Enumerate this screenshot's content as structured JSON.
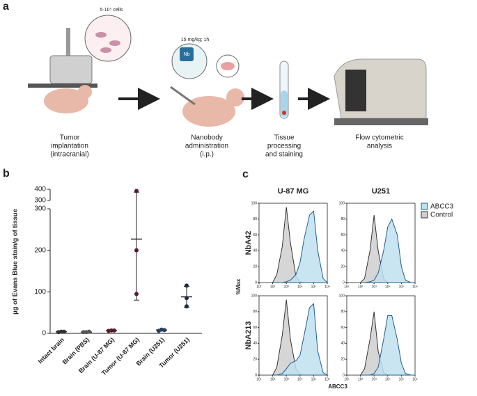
{
  "diagram": {
    "letter": "a",
    "cells": "5·10⁵ cells",
    "dose": "15 mg/kg; 1h",
    "nb": "Nb",
    "steps": [
      [
        "Tumor",
        "implantation",
        "(intracranial)"
      ],
      [
        "Nanobody",
        "administration",
        "(i.p.)"
      ],
      [
        "Tissue",
        "processing",
        "and staining"
      ],
      [
        "Flow cytometric",
        "analysis"
      ]
    ]
  },
  "chart_data": [
    {
      "type": "dot",
      "letter": "b",
      "ylabel": "µg of Evans Blue stain/g of tissue",
      "categories": [
        "Intact brain",
        "Brain (PBS)",
        "Brain (U-87 MG)",
        "Tumor (U-87 MG)",
        "Brain (U251)",
        "Tumor (U251)"
      ],
      "colors": [
        "#333333",
        "#555555",
        "#5a1a2a",
        "#5a1a2a",
        "#2a3f5f",
        "#1c2a44"
      ],
      "values": [
        [
          3,
          4,
          4
        ],
        [
          3,
          3,
          4
        ],
        [
          6,
          7,
          7
        ],
        [
          385,
          200,
          95
        ],
        [
          6,
          9,
          8
        ],
        [
          115,
          85,
          65
        ]
      ],
      "means": [
        4,
        3,
        7,
        227,
        8,
        88
      ],
      "errors": [
        1,
        1,
        1,
        147,
        2,
        25
      ],
      "ylim": [
        0,
        300
      ],
      "yticks": [
        0,
        100,
        200,
        300
      ],
      "ylim_upper": [
        300,
        400
      ],
      "yticks_upper": [
        300,
        400
      ]
    },
    {
      "type": "flow-grid",
      "letter": "c",
      "columns": [
        "U-87 MG",
        "U251"
      ],
      "rows": [
        "NbA42",
        "NbA213"
      ],
      "xlabel": "ABCC3",
      "ylabel": "%Max",
      "log_x": true,
      "xlim": [
        10,
        1000000
      ],
      "xticks": [
        {
          "value": 10,
          "label": "10¹"
        },
        {
          "value": 100,
          "label": "10²"
        },
        {
          "value": 1000,
          "label": "10³"
        },
        {
          "value": 10000,
          "label": "10⁴"
        },
        {
          "value": 100000,
          "label": "10⁵"
        },
        {
          "value": 1000000,
          "label": "10⁶"
        }
      ],
      "ylim": [
        0,
        100
      ],
      "yticks": [
        0,
        20,
        40,
        60,
        80,
        100
      ],
      "x": [
        100,
        200,
        500,
        1000,
        2000,
        5000,
        10000,
        20000,
        50000,
        100000,
        200000,
        500000,
        1000000
      ],
      "series": [
        {
          "name": "ABCC3",
          "color": "#bfe0f0",
          "line": "#1f5f8b",
          "values": [
            [
              0,
              0,
              0,
              1,
              3,
              10,
              25,
              55,
              85,
              90,
              40,
              5,
              0
            ],
            [
              0,
              0,
              1,
              3,
              12,
              40,
              70,
              80,
              60,
              20,
              3,
              0,
              0
            ],
            [
              0,
              0,
              2,
              8,
              15,
              18,
              25,
              50,
              85,
              90,
              30,
              3,
              0
            ],
            [
              0,
              0,
              0,
              2,
              10,
              45,
              75,
              75,
              45,
              15,
              2,
              0,
              0
            ]
          ]
        },
        {
          "name": "Control",
          "color": "#cfcfcf",
          "line": "#333333",
          "values": [
            [
              0,
              10,
              45,
              95,
              50,
              8,
              1,
              0,
              0,
              0,
              0,
              0,
              0
            ],
            [
              0,
              5,
              40,
              85,
              40,
              5,
              0,
              0,
              0,
              0,
              0,
              0,
              0
            ],
            [
              0,
              10,
              50,
              95,
              45,
              8,
              1,
              0,
              0,
              0,
              0,
              0,
              0
            ],
            [
              0,
              8,
              45,
              80,
              30,
              3,
              0,
              0,
              0,
              0,
              0,
              0,
              0
            ]
          ]
        }
      ]
    }
  ]
}
